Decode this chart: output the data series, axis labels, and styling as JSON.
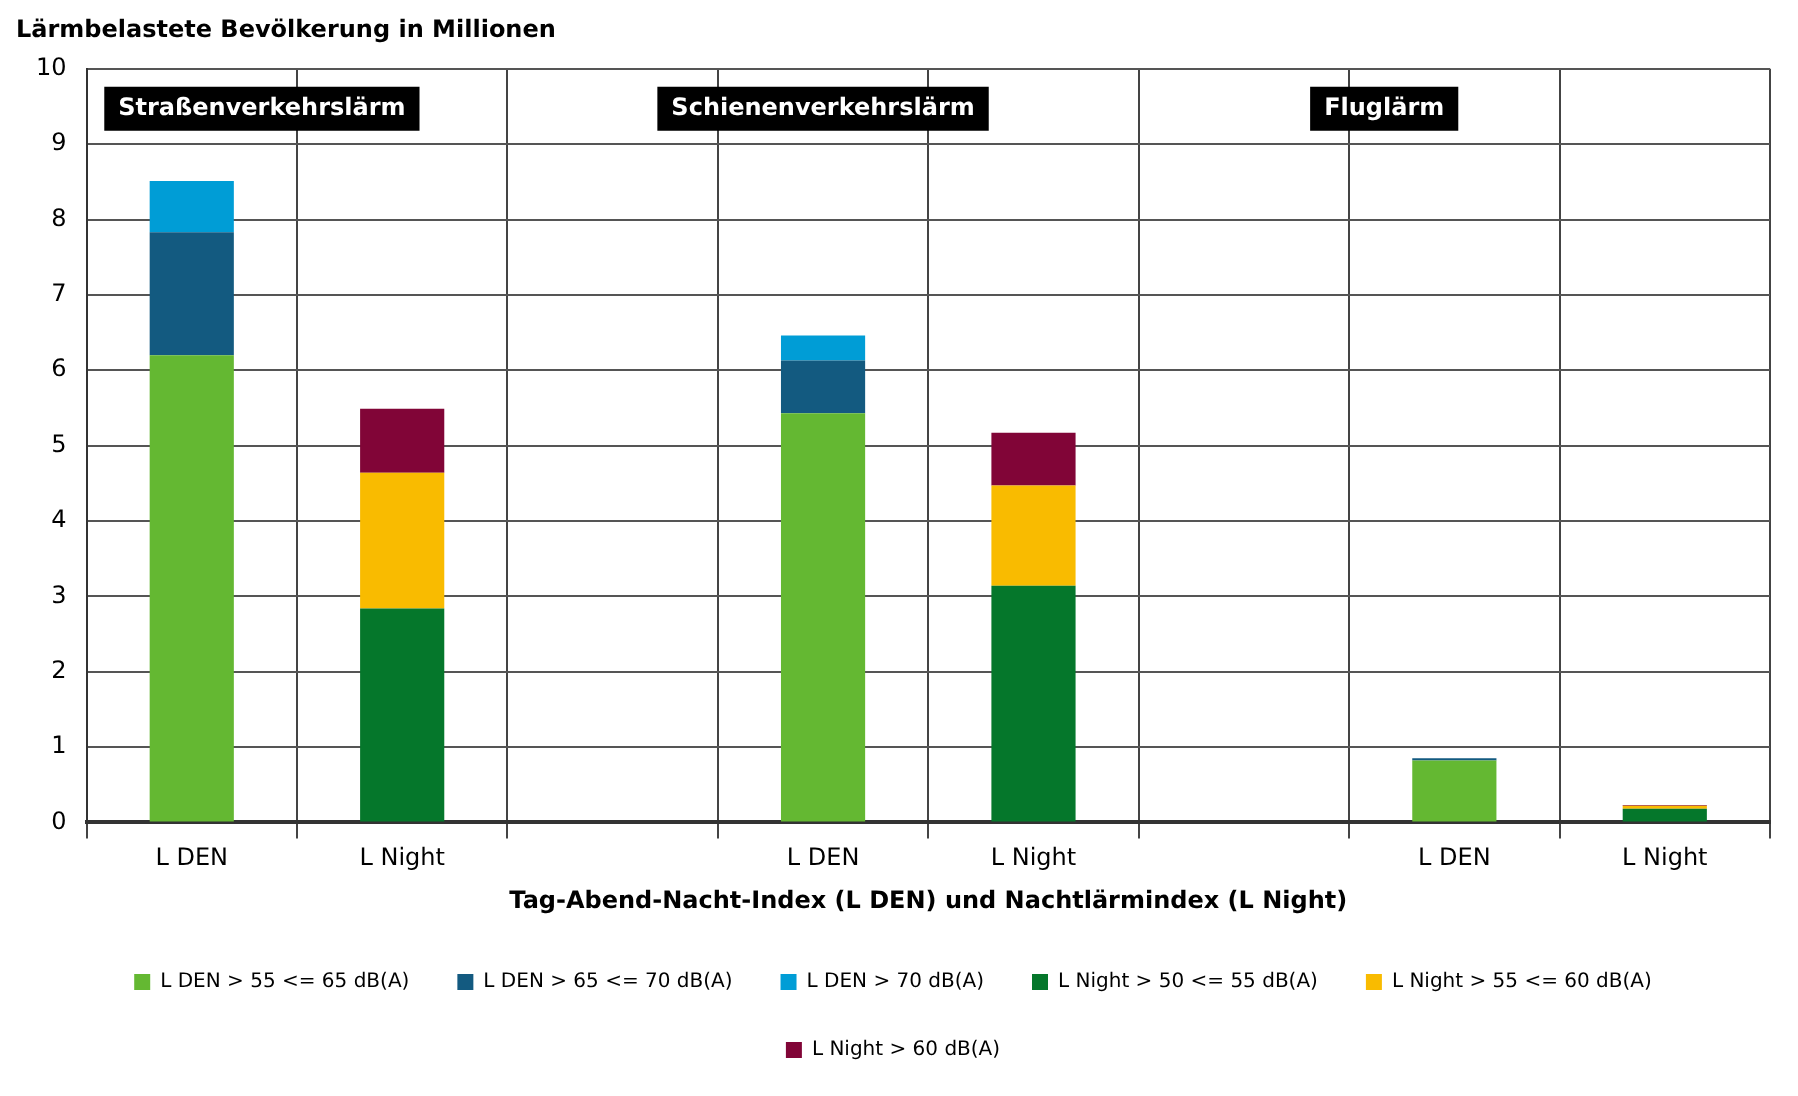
{
  "chart_data": {
    "type": "bar",
    "stacked": true,
    "ylabel": "Lärmbelastete Bevölkerung in Millionen",
    "xlabel": "Tag-Abend-Nacht-Index (L DEN) und Nachtlärmindex (L Night)",
    "categories": [
      "L DEN",
      "L Night",
      null,
      "L DEN",
      "L Night",
      null,
      "L DEN",
      "L Night"
    ],
    "series": [
      {
        "name": "L DEN > 55 <= 65 dB(A)",
        "color": "#64b832",
        "values": [
          6.2,
          null,
          null,
          5.43,
          null,
          null,
          0.82,
          null
        ]
      },
      {
        "name": "L DEN > 65 <= 70 dB(A)",
        "color": "#135a80",
        "values": [
          1.63,
          null,
          null,
          0.7,
          null,
          null,
          0.03,
          null
        ]
      },
      {
        "name": "L DEN > 70 dB(A)",
        "color": "#009dd6",
        "values": [
          0.68,
          null,
          null,
          0.33,
          null,
          null,
          null,
          null
        ]
      },
      {
        "name": "L Night > 50 <= 55 dB(A)",
        "color": "#05772b",
        "values": [
          null,
          2.84,
          null,
          null,
          3.14,
          null,
          null,
          0.18
        ]
      },
      {
        "name": "L Night > 55 <= 60 dB(A)",
        "color": "#f9bb00",
        "values": [
          null,
          1.8,
          null,
          null,
          1.33,
          null,
          null,
          0.04
        ]
      },
      {
        "name": "L Night > 60 dB(A)",
        "color": "#810537",
        "values": [
          null,
          0.85,
          null,
          null,
          0.7,
          null,
          null,
          0.01
        ]
      }
    ],
    "annotations": [
      "Straßenverkehrslärm",
      "Schienenverkehrslärm",
      "Fluglärm"
    ],
    "ylim": [
      0,
      10
    ],
    "yticks": [
      0,
      1,
      2,
      3,
      4,
      5,
      6,
      7,
      8,
      9,
      10
    ],
    "grid": true,
    "legend": "bottom"
  }
}
